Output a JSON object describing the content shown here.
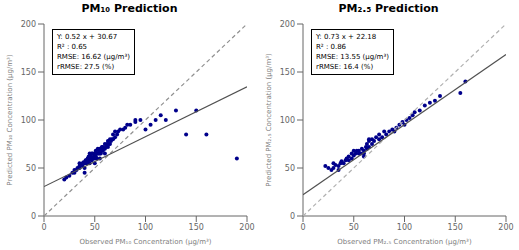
{
  "chart_data": [
    {
      "type": "scatter",
      "title": "PM₁₀ Prediction",
      "xlabel": "Observed PM₁₀ Concentration (μg/m³)",
      "ylabel": "Predicted PM₁₀ Concentration (μg/m³)",
      "annotations": [
        "Y: 0.52 x + 30.67",
        "R² : 0.65",
        "RMSE: 16.62 (μg/m³)",
        "rRMSE: 27.5 (%)"
      ],
      "xlim": [
        0,
        200
      ],
      "ylim": [
        0,
        200
      ],
      "xticks": [
        0,
        50,
        100,
        150,
        200
      ],
      "yticks": [
        0,
        50,
        100,
        150,
        200
      ],
      "grid": false,
      "series": [
        {
          "type": "scatter",
          "color": "#00008B",
          "x": [
            20,
            22,
            25,
            28,
            30,
            30,
            32,
            33,
            35,
            35,
            35,
            36,
            37,
            38,
            38,
            39,
            40,
            40,
            40,
            41,
            42,
            42,
            43,
            43,
            44,
            44,
            45,
            45,
            45,
            46,
            46,
            47,
            47,
            48,
            48,
            49,
            50,
            50,
            50,
            51,
            51,
            52,
            52,
            53,
            53,
            54,
            54,
            55,
            55,
            55,
            56,
            56,
            57,
            57,
            58,
            58,
            59,
            60,
            60,
            60,
            61,
            62,
            63,
            63,
            64,
            65,
            65,
            66,
            67,
            68,
            68,
            70,
            70,
            72,
            73,
            75,
            78,
            80,
            82,
            85,
            90,
            90,
            95,
            100,
            105,
            110,
            115,
            120,
            130,
            140,
            150,
            160,
            190
          ],
          "values": [
            38,
            40,
            42,
            45,
            45,
            48,
            48,
            50,
            50,
            52,
            55,
            54,
            53,
            52,
            55,
            56,
            45,
            50,
            55,
            58,
            55,
            58,
            55,
            60,
            58,
            62,
            55,
            60,
            65,
            60,
            62,
            58,
            65,
            60,
            65,
            62,
            55,
            60,
            65,
            62,
            68,
            60,
            65,
            65,
            70,
            65,
            68,
            60,
            65,
            70,
            65,
            70,
            68,
            72,
            68,
            72,
            70,
            65,
            70,
            75,
            72,
            75,
            72,
            78,
            75,
            75,
            80,
            78,
            80,
            80,
            85,
            82,
            88,
            85,
            88,
            90,
            90,
            92,
            95,
            95,
            98,
            100,
            100,
            90,
            95,
            100,
            105,
            100,
            110,
            85,
            110,
            85,
            60
          ]
        },
        {
          "type": "line",
          "line_style": "dashed",
          "color": "#909090",
          "x": [
            0,
            200
          ],
          "values": [
            0,
            200
          ]
        },
        {
          "type": "line",
          "line_style": "solid",
          "color": "#505050",
          "x": [
            0,
            200
          ],
          "values": [
            30.67,
            134.67
          ]
        }
      ]
    },
    {
      "type": "scatter",
      "title": "PM₂.₅ Prediction",
      "xlabel": "Observed PM₂.₅ Concentration (μg/m³)",
      "ylabel": "Predicted PM₂.₅ Concentration (μg/m³)",
      "annotations": [
        "Y: 0.73 x + 22.18",
        "R² : 0.86",
        "RMSE: 13.55 (μg/m³)",
        "rRMSE: 16.4 (%)"
      ],
      "xlim": [
        0,
        200
      ],
      "ylim": [
        0,
        200
      ],
      "xticks": [
        0,
        50,
        100,
        150,
        200
      ],
      "yticks": [
        0,
        50,
        100,
        150,
        200
      ],
      "grid": false,
      "series": [
        {
          "type": "scatter",
          "color": "#00008B",
          "x": [
            22,
            25,
            28,
            30,
            30,
            32,
            35,
            35,
            37,
            38,
            40,
            42,
            43,
            45,
            45,
            48,
            48,
            50,
            50,
            52,
            53,
            55,
            55,
            57,
            58,
            60,
            60,
            60,
            62,
            63,
            63,
            65,
            65,
            65,
            68,
            68,
            70,
            72,
            75,
            75,
            78,
            80,
            82,
            85,
            88,
            90,
            92,
            95,
            98,
            100,
            102,
            105,
            108,
            110,
            115,
            120,
            125,
            130,
            135,
            155,
            160
          ],
          "values": [
            52,
            50,
            48,
            50,
            55,
            53,
            48,
            52,
            55,
            57,
            55,
            58,
            60,
            58,
            62,
            60,
            65,
            63,
            68,
            65,
            68,
            65,
            68,
            65,
            70,
            62,
            65,
            68,
            72,
            70,
            75,
            72,
            78,
            80,
            75,
            80,
            78,
            82,
            80,
            85,
            82,
            88,
            85,
            88,
            90,
            88,
            92,
            95,
            98,
            95,
            100,
            102,
            105,
            108,
            110,
            115,
            118,
            120,
            125,
            128,
            140
          ]
        },
        {
          "type": "line",
          "line_style": "dashed",
          "color": "#B0B0B0",
          "x": [
            0,
            200
          ],
          "values": [
            0,
            200
          ]
        },
        {
          "type": "line",
          "line_style": "solid",
          "color": "#505050",
          "x": [
            0,
            200
          ],
          "values": [
            22.18,
            168.18
          ]
        }
      ]
    }
  ]
}
